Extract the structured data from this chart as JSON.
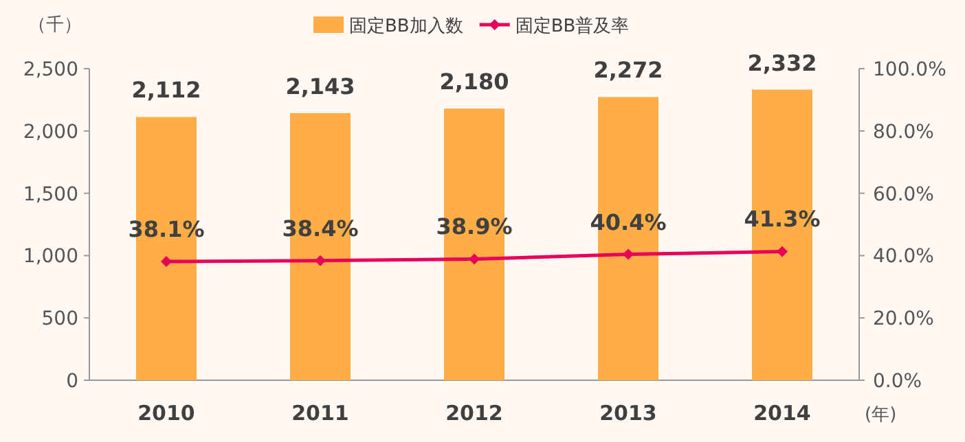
{
  "chart_data": {
    "type": "bar",
    "ylabel": "（千）",
    "xlabel": "(年)",
    "categories": [
      "2010",
      "2011",
      "2012",
      "2013",
      "2014"
    ],
    "series": [
      {
        "name": "固定BB加入数",
        "color": "#ffad47",
        "values": [
          2112,
          2143,
          2180,
          2272,
          2332
        ],
        "value_labels": [
          "2,112",
          "2,143",
          "2,180",
          "2,272",
          "2,332"
        ]
      },
      {
        "name": "固定BB普及率",
        "type": "line",
        "axis": "y2",
        "color": "#e8005a",
        "marker": "diamond",
        "values": [
          38.1,
          38.4,
          38.9,
          40.4,
          41.3
        ],
        "value_labels": [
          "38.1%",
          "38.4%",
          "38.9%",
          "40.4%",
          "41.3%"
        ]
      }
    ],
    "ylim": [
      0,
      2500
    ],
    "yticks": [
      0,
      500,
      {
        "value": 1000,
        "label": "1,000"
      },
      {
        "value": 1500,
        "label": "1,500"
      },
      {
        "value": 2000,
        "label": "2,000"
      },
      {
        "value": 2500,
        "label": "2,500"
      }
    ],
    "y2lim": [
      0,
      100
    ],
    "y2ticks": [
      {
        "value": 0,
        "label": "0.0%"
      },
      {
        "value": 20,
        "label": "20.0%"
      },
      {
        "value": 40,
        "label": "40.0%"
      },
      {
        "value": 60,
        "label": "60.0%"
      },
      {
        "value": 80,
        "label": "80.0%"
      },
      {
        "value": 100,
        "label": "100.0%"
      }
    ],
    "legend": "top"
  }
}
